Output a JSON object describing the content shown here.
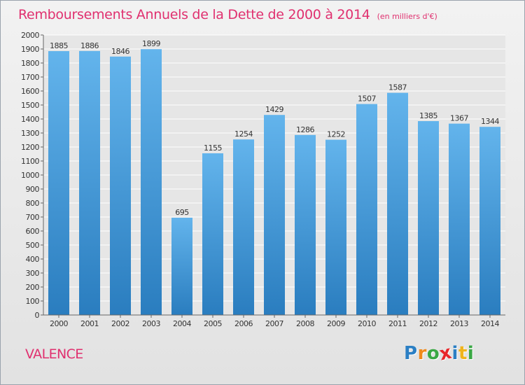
{
  "chart_data": {
    "type": "bar",
    "title": "Remboursements Annuels de la Dette de 2000 à 2014",
    "subtitle": "(en milliers d'€)",
    "categories": [
      "2000",
      "2001",
      "2002",
      "2003",
      "2004",
      "2005",
      "2006",
      "2007",
      "2008",
      "2009",
      "2010",
      "2011",
      "2012",
      "2013",
      "2014"
    ],
    "values": [
      1885,
      1886,
      1846,
      1899,
      695,
      1155,
      1254,
      1429,
      1286,
      1252,
      1507,
      1587,
      1385,
      1367,
      1344
    ],
    "ylim": [
      0,
      2000
    ],
    "yticks": [
      0,
      100,
      200,
      300,
      400,
      500,
      600,
      700,
      800,
      900,
      1000,
      1100,
      1200,
      1300,
      1400,
      1500,
      1600,
      1700,
      1800,
      1900,
      2000
    ],
    "grid": true,
    "xlabel": "",
    "ylabel": "",
    "colors": {
      "bar_top": "#63b4ec",
      "bar_bottom": "#2a7dbf",
      "title": "#e0306f",
      "grid": "#ffffff"
    }
  },
  "location": "VALENCE",
  "brand": {
    "letters": [
      "P",
      "r",
      "o",
      "x",
      "i",
      "t",
      "i"
    ],
    "colors": [
      "#2b7fc4",
      "#f08a1c",
      "#3aa844",
      "#e8262a",
      "#2b7fc4",
      "#f0b41c",
      "#3aa844"
    ]
  }
}
